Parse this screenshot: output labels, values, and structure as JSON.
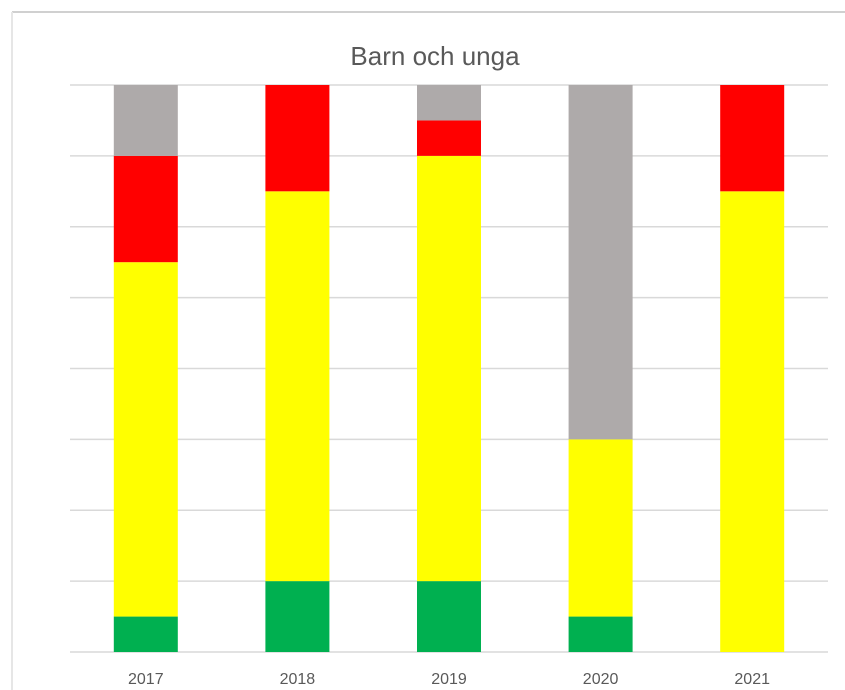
{
  "chart_data": {
    "type": "stacked_bar",
    "title": "Barn och unga",
    "categories": [
      "2017",
      "2018",
      "2019",
      "2020",
      "2021"
    ],
    "series": [
      {
        "color": "#00b050",
        "values": [
          1,
          2,
          2,
          1,
          0
        ]
      },
      {
        "color": "#ffff00",
        "values": [
          10,
          11,
          12,
          5,
          13
        ]
      },
      {
        "color": "#ff0000",
        "values": [
          3,
          3,
          1,
          0,
          3
        ]
      },
      {
        "color": "#aeaaaa",
        "values": [
          2,
          0,
          1,
          10,
          0
        ]
      }
    ],
    "ylim": [
      0,
      16
    ],
    "yticks": [
      0,
      2,
      4,
      6,
      8,
      10,
      12,
      14,
      16
    ],
    "grid": true
  }
}
